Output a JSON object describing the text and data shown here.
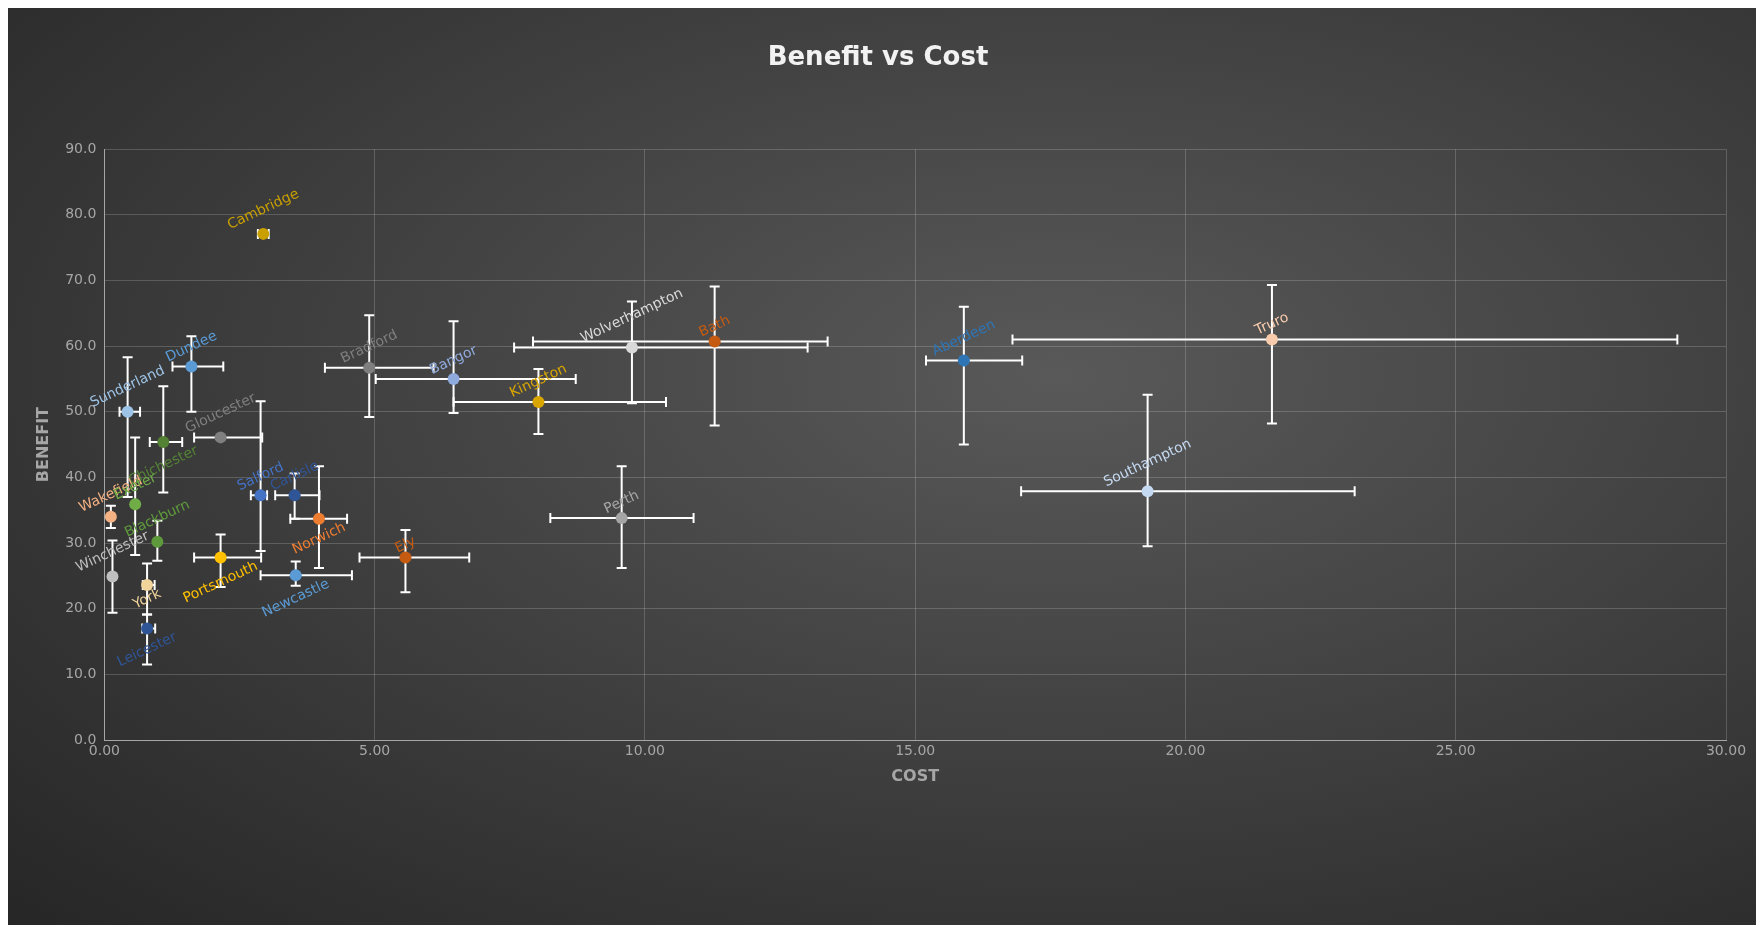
{
  "chart_data": {
    "type": "scatter",
    "title": "Benefit vs Cost",
    "xlabel": "COST",
    "ylabel": "BENEFIT",
    "marker": "circle",
    "grid": true,
    "xlim": [
      0,
      30
    ],
    "ylim": [
      0,
      90
    ],
    "xticks": [
      {
        "value": 0,
        "label": "0.00"
      },
      {
        "value": 5,
        "label": "5.00"
      },
      {
        "value": 10,
        "label": "10.00"
      },
      {
        "value": 15,
        "label": "15.00"
      },
      {
        "value": 20,
        "label": "20.00"
      },
      {
        "value": 25,
        "label": "25.00"
      },
      {
        "value": 30,
        "label": "30.00"
      }
    ],
    "yticks": [
      {
        "value": 0,
        "label": "0.0"
      },
      {
        "value": 10,
        "label": "10.0"
      },
      {
        "value": 20,
        "label": "20.0"
      },
      {
        "value": 30,
        "label": "30.0"
      },
      {
        "value": 40,
        "label": "40.0"
      },
      {
        "value": 50,
        "label": "50.0"
      },
      {
        "value": 60,
        "label": "60.0"
      },
      {
        "value": 70,
        "label": "70.0"
      },
      {
        "value": 80,
        "label": "80.0"
      },
      {
        "value": 90,
        "label": "90.0"
      }
    ],
    "series": [
      {
        "name": "Cambridge",
        "color": "#c9a000",
        "x": [
          2.94
        ],
        "values": [
          77.1
        ],
        "xerrors": [
          [
            2.84,
            3.04
          ]
        ],
        "errors": [
          null
        ]
      },
      {
        "name": "Dundee",
        "color": "#5b9bd5",
        "x": [
          1.61
        ],
        "values": [
          56.9
        ],
        "xerrors": [
          [
            1.26,
            2.2
          ]
        ],
        "errors": [
          [
            50.0,
            61.5
          ]
        ]
      },
      {
        "name": "Sunderland",
        "color": "#9dc3e6",
        "x": [
          0.43
        ],
        "values": [
          50.0
        ],
        "xerrors": [
          [
            0.28,
            0.66
          ]
        ],
        "errors": [
          [
            37.0,
            58.3
          ]
        ]
      },
      {
        "name": "Chichester",
        "color": "#548235",
        "x": [
          1.09
        ],
        "values": [
          45.4
        ],
        "xerrors": [
          [
            0.84,
            1.44
          ]
        ],
        "errors": [
          [
            37.7,
            53.9
          ]
        ]
      },
      {
        "name": "Gloucester",
        "color": "#7f7f7f",
        "x": [
          2.15
        ],
        "values": [
          46.1
        ],
        "xerrors": [
          [
            1.66,
            2.92
          ]
        ],
        "errors": [
          null
        ]
      },
      {
        "name": "Wakefield",
        "color": "#f4b183",
        "x": [
          0.12
        ],
        "values": [
          34.0
        ],
        "xerrors": [
          null
        ],
        "errors": [
          [
            32.3,
            35.7
          ]
        ]
      },
      {
        "name": "Exeter",
        "color": "#70ad47",
        "x": [
          0.57
        ],
        "values": [
          35.9
        ],
        "xerrors": [
          null
        ],
        "errors": [
          [
            28.2,
            46.1
          ]
        ]
      },
      {
        "name": "Winchester",
        "color": "#bfbfbf",
        "x": [
          0.15
        ],
        "values": [
          24.9
        ],
        "xerrors": [
          null
        ],
        "errors": [
          [
            19.4,
            30.4
          ]
        ]
      },
      {
        "name": "Blackburn",
        "color": "#5e9a3c",
        "x": [
          0.98
        ],
        "values": [
          30.2
        ],
        "xerrors": [
          null
        ],
        "errors": [
          [
            27.3,
            33.4
          ]
        ]
      },
      {
        "name": "York",
        "color": "#f0d49b",
        "x": [
          0.79
        ],
        "values": [
          23.6
        ],
        "xerrors": [
          [
            0.71,
            0.93
          ]
        ],
        "errors": [
          [
            19.1,
            26.9
          ]
        ]
      },
      {
        "name": "Leicester",
        "color": "#2f5597",
        "x": [
          0.79
        ],
        "values": [
          17.0
        ],
        "xerrors": [
          [
            0.7,
            0.94
          ]
        ],
        "errors": [
          [
            11.5,
            19.1
          ]
        ]
      },
      {
        "name": "Salford",
        "color": "#4472c4",
        "x": [
          2.89
        ],
        "values": [
          37.3
        ],
        "xerrors": [
          [
            2.71,
            3.01
          ]
        ],
        "errors": [
          [
            28.8,
            51.6
          ]
        ]
      },
      {
        "name": "Carlisle",
        "color": "#2f5597",
        "x": [
          3.52
        ],
        "values": [
          37.3
        ],
        "xerrors": [
          [
            3.16,
            3.98
          ]
        ],
        "errors": [
          [
            33.7,
            40.6
          ]
        ]
      },
      {
        "name": "Norwich",
        "color": "#ed7d31",
        "x": [
          3.97
        ],
        "values": [
          33.7
        ],
        "xerrors": [
          [
            3.44,
            4.49
          ]
        ],
        "errors": [
          [
            26.2,
            41.7
          ]
        ]
      },
      {
        "name": "Newcastle",
        "color": "#5b9bd5",
        "x": [
          3.54
        ],
        "values": [
          25.1
        ],
        "xerrors": [
          [
            2.89,
            4.58
          ]
        ],
        "errors": [
          [
            23.5,
            27.2
          ]
        ]
      },
      {
        "name": "Portsmouth",
        "color": "#ffc000",
        "x": [
          2.15
        ],
        "values": [
          27.8
        ],
        "xerrors": [
          [
            1.66,
            2.9
          ]
        ],
        "errors": [
          [
            23.3,
            31.3
          ]
        ]
      },
      {
        "name": "Ely",
        "color": "#c55a11",
        "x": [
          5.57
        ],
        "values": [
          27.8
        ],
        "xerrors": [
          [
            4.72,
            6.75
          ]
        ],
        "errors": [
          [
            22.5,
            32.0
          ]
        ]
      },
      {
        "name": "Bradford",
        "color": "#7f7f7f",
        "x": [
          4.9
        ],
        "values": [
          56.7
        ],
        "xerrors": [
          [
            4.08,
            6.09
          ]
        ],
        "errors": [
          [
            49.2,
            64.7
          ]
        ]
      },
      {
        "name": "Bangor",
        "color": "#8faadc",
        "x": [
          6.46
        ],
        "values": [
          55.0
        ],
        "xerrors": [
          [
            5.02,
            8.72
          ]
        ],
        "errors": [
          [
            49.8,
            63.8
          ]
        ]
      },
      {
        "name": "Kingston",
        "color": "#d9a600",
        "x": [
          8.03
        ],
        "values": [
          51.5
        ],
        "xerrors": [
          [
            6.46,
            10.39
          ]
        ],
        "errors": [
          [
            46.6,
            56.5
          ]
        ]
      },
      {
        "name": "Wolverhampton",
        "color": "#d9d9d9",
        "x": [
          9.76
        ],
        "values": [
          59.8
        ],
        "xerrors": [
          [
            7.58,
            13.01
          ]
        ],
        "errors": [
          [
            51.3,
            66.8
          ]
        ]
      },
      {
        "name": "Bath",
        "color": "#c55a11",
        "x": [
          11.29
        ],
        "values": [
          60.7
        ],
        "xerrors": [
          [
            7.93,
            13.38
          ]
        ],
        "errors": [
          [
            47.9,
            69.1
          ]
        ]
      },
      {
        "name": "Perth",
        "color": "#a5a5a5",
        "x": [
          9.57
        ],
        "values": [
          33.8
        ],
        "xerrors": [
          [
            8.25,
            10.9
          ]
        ],
        "errors": [
          [
            26.2,
            41.7
          ]
        ]
      },
      {
        "name": "Aberdeen",
        "color": "#2e75b6",
        "x": [
          15.9
        ],
        "values": [
          57.8
        ],
        "xerrors": [
          [
            15.2,
            16.98
          ]
        ],
        "errors": [
          [
            45.0,
            66.0
          ]
        ]
      },
      {
        "name": "Truro",
        "color": "#f8cbad",
        "x": [
          21.6
        ],
        "values": [
          61.0
        ],
        "xerrors": [
          [
            16.8,
            29.1
          ]
        ],
        "errors": [
          [
            48.2,
            69.3
          ]
        ]
      },
      {
        "name": "Southampton",
        "color": "#c5d9f1",
        "x": [
          19.3
        ],
        "values": [
          37.9
        ],
        "xerrors": [
          [
            16.96,
            23.13
          ]
        ],
        "errors": [
          [
            29.5,
            52.6
          ]
        ]
      }
    ]
  }
}
